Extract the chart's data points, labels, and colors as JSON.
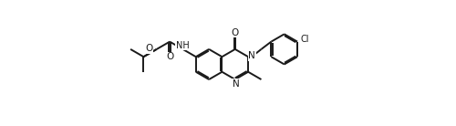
{
  "background_color": "#ffffff",
  "line_color": "#1a1a1a",
  "line_width": 1.4,
  "font_size": 7.5,
  "figsize": [
    5.0,
    1.38
  ],
  "dpi": 100,
  "xlim": [
    0,
    5.0
  ],
  "ylim": [
    0,
    1.38
  ]
}
